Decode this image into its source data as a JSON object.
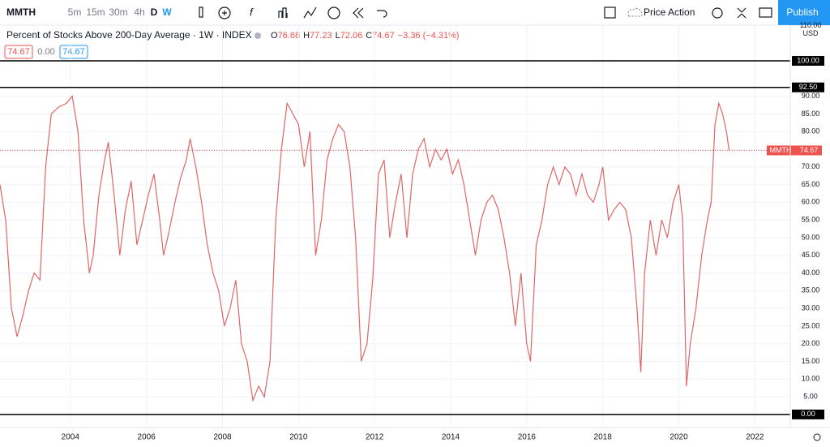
{
  "toolbar": {
    "symbol": "MMTH",
    "intervals": [
      "5m",
      "15m",
      "30m",
      "4h",
      "D",
      "W"
    ],
    "active_interval": "W",
    "layout": "Price Action",
    "publish": "Publish"
  },
  "legend": {
    "title": "Percent of Stocks Above 200-Day Average · 1W · INDEX",
    "ohlc": [
      {
        "label": "O",
        "value": "76.68"
      },
      {
        "label": "H",
        "value": "77.23"
      },
      {
        "label": "L",
        "value": "72.06"
      },
      {
        "label": "C",
        "value": "74.67"
      }
    ],
    "change": "−3.36 (−4.31%)",
    "badges": [
      "74.67",
      "0.00",
      "74.67"
    ]
  },
  "chart_data": {
    "type": "line",
    "color": "#e06666",
    "grid": true,
    "currency": "USD",
    "x": [
      2002.15,
      2002.3,
      2002.45,
      2002.6,
      2002.75,
      2002.9,
      2003.05,
      2003.2,
      2003.35,
      2003.5,
      2003.7,
      2003.9,
      2004.05,
      2004.2,
      2004.35,
      2004.5,
      2004.6,
      2004.75,
      2004.9,
      2005.0,
      2005.15,
      2005.3,
      2005.45,
      2005.6,
      2005.75,
      2005.9,
      2006.05,
      2006.2,
      2006.35,
      2006.45,
      2006.6,
      2006.75,
      2006.9,
      2007.05,
      2007.15,
      2007.3,
      2007.45,
      2007.6,
      2007.75,
      2007.9,
      2008.05,
      2008.2,
      2008.35,
      2008.5,
      2008.65,
      2008.8,
      2008.95,
      2009.1,
      2009.25,
      2009.4,
      2009.55,
      2009.7,
      2009.85,
      2010.0,
      2010.15,
      2010.3,
      2010.45,
      2010.6,
      2010.75,
      2010.9,
      2011.05,
      2011.2,
      2011.35,
      2011.5,
      2011.65,
      2011.8,
      2011.95,
      2012.1,
      2012.25,
      2012.4,
      2012.55,
      2012.7,
      2012.85,
      2013.0,
      2013.15,
      2013.3,
      2013.45,
      2013.6,
      2013.75,
      2013.9,
      2014.05,
      2014.2,
      2014.35,
      2014.5,
      2014.65,
      2014.8,
      2014.95,
      2015.1,
      2015.25,
      2015.4,
      2015.55,
      2015.7,
      2015.85,
      2016.0,
      2016.1,
      2016.25,
      2016.4,
      2016.55,
      2016.7,
      2016.85,
      2017.0,
      2017.15,
      2017.3,
      2017.45,
      2017.6,
      2017.75,
      2017.9,
      2018.0,
      2018.15,
      2018.3,
      2018.45,
      2018.6,
      2018.75,
      2018.9,
      2019.0,
      2019.1,
      2019.25,
      2019.4,
      2019.55,
      2019.7,
      2019.85,
      2020.0,
      2020.1,
      2020.2,
      2020.3,
      2020.45,
      2020.6,
      2020.75,
      2020.85,
      2020.95,
      2021.05,
      2021.15,
      2021.25,
      2021.32
    ],
    "values": [
      65,
      55,
      30,
      22,
      28,
      35,
      40,
      38,
      70,
      85,
      87,
      88,
      90,
      80,
      55,
      40,
      45,
      62,
      72,
      77,
      62,
      45,
      58,
      66,
      48,
      55,
      62,
      68,
      55,
      45,
      52,
      60,
      67,
      72,
      78,
      70,
      60,
      48,
      40,
      35,
      25,
      30,
      38,
      20,
      15,
      4,
      8,
      5,
      15,
      55,
      75,
      88,
      85,
      82,
      70,
      80,
      45,
      55,
      72,
      78,
      82,
      80,
      70,
      50,
      15,
      20,
      38,
      68,
      72,
      50,
      60,
      68,
      50,
      68,
      75,
      78,
      70,
      75,
      72,
      75,
      68,
      72,
      65,
      55,
      45,
      55,
      60,
      62,
      58,
      50,
      40,
      25,
      40,
      20,
      15,
      48,
      55,
      65,
      70,
      65,
      70,
      68,
      62,
      68,
      62,
      60,
      65,
      70,
      55,
      58,
      60,
      58,
      50,
      30,
      12,
      40,
      55,
      45,
      55,
      50,
      60,
      65,
      55,
      8,
      20,
      30,
      45,
      55,
      60,
      82,
      88,
      85,
      80,
      74.67
    ],
    "xlim": [
      2002.15,
      2022.93
    ],
    "ylim": [
      -3.7,
      110.1
    ],
    "xticks": [
      2004,
      2006,
      2008,
      2010,
      2012,
      2014,
      2016,
      2018,
      2020,
      2022
    ],
    "yticks": [
      {
        "value": 5,
        "label": "5.00"
      },
      {
        "value": 10,
        "label": "10.00"
      },
      {
        "value": 15,
        "label": "15.00"
      },
      {
        "value": 20,
        "label": "20.00"
      },
      {
        "value": 25,
        "label": "25.00"
      },
      {
        "value": 30,
        "label": "30.00"
      },
      {
        "value": 35,
        "label": "35.00"
      },
      {
        "value": 40,
        "label": "40.00"
      },
      {
        "value": 45,
        "label": "45.00"
      },
      {
        "value": 50,
        "label": "50.00"
      },
      {
        "value": 55,
        "label": "55.00"
      },
      {
        "value": 60,
        "label": "60.00"
      },
      {
        "value": 65,
        "label": "65.00"
      },
      {
        "value": 70,
        "label": "70.00"
      },
      {
        "value": 75,
        "label": "75.00"
      },
      {
        "value": 80,
        "label": "80.00"
      },
      {
        "value": 85,
        "label": "85.00"
      },
      {
        "value": 90,
        "label": "90.00"
      },
      {
        "value": 110,
        "label": "110.00"
      }
    ],
    "levels": [
      {
        "value": 100,
        "label": "100.00"
      },
      {
        "value": 92.5,
        "label": "92.50"
      },
      {
        "value": 0,
        "label": "0.00"
      }
    ]
  }
}
